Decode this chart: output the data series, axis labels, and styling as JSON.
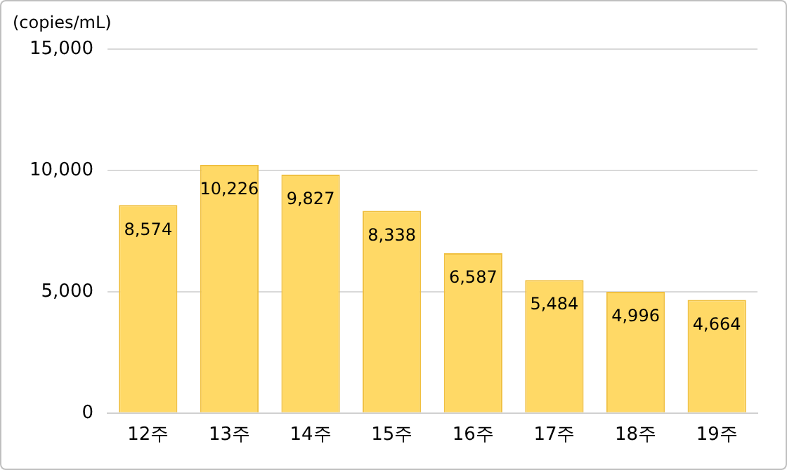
{
  "chart_data": {
    "type": "bar",
    "ylabel": "(copies/mL)",
    "categories": [
      "12주",
      "13주",
      "14주",
      "15주",
      "16주",
      "17주",
      "18주",
      "19주"
    ],
    "values": [
      8574,
      10226,
      9827,
      8338,
      6587,
      5484,
      4996,
      4664
    ],
    "value_labels": [
      "8,574",
      "10,226",
      "9,827",
      "8,338",
      "6,587",
      "5,484",
      "4,996",
      "4,664"
    ],
    "color": "#ffd966",
    "ylim": [
      0,
      15000
    ],
    "yticks": [
      {
        "value": 0,
        "label": "0"
      },
      {
        "value": 5000,
        "label": "5,000"
      },
      {
        "value": 10000,
        "label": "10,000"
      },
      {
        "value": 15000,
        "label": "15,000"
      }
    ],
    "grid": "y",
    "legend": false
  }
}
